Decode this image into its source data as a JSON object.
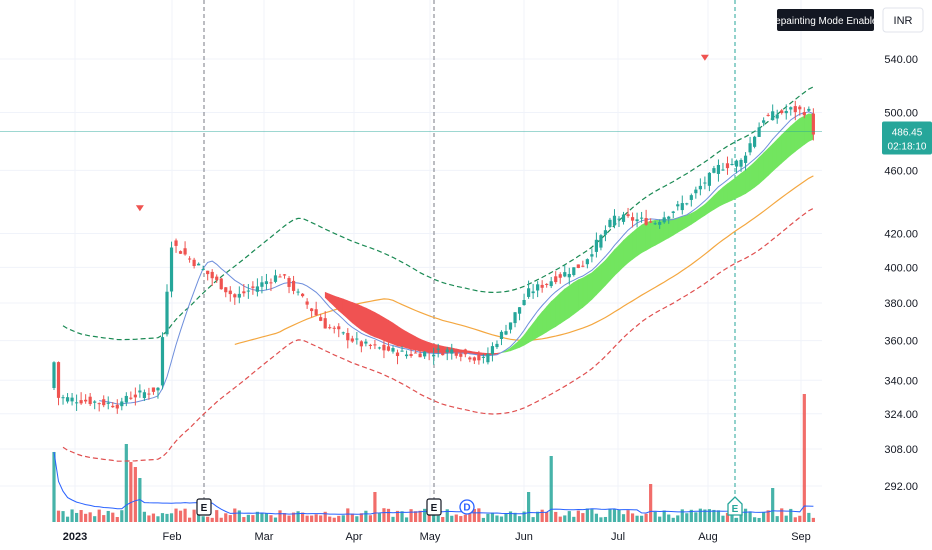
{
  "toolbar": {
    "mode_label": "Repainting Mode Enabled",
    "currency_label": "INR"
  },
  "last_price": {
    "value": "486.45",
    "countdown": "02:18:10"
  },
  "colors": {
    "up": "#26a69a",
    "down": "#ef5350",
    "ribbon_bull": "#72e55f",
    "ribbon_bear": "#f05252",
    "envelope_upper": "#1b8a54",
    "envelope_lower": "#e05050",
    "ma_fast": "#6f8fdc",
    "ma_slow": "#f4a740",
    "price_line": "#26a69a",
    "event_circle": "#2962ff",
    "event_box": "#131722"
  },
  "chart_data": {
    "type": "candlestick",
    "y_axis": {
      "ticks": [
        540,
        500,
        460,
        420,
        400,
        380,
        360,
        340,
        324,
        308,
        292
      ],
      "tick_labels": [
        "540.00",
        "500.00",
        "460.00",
        "420.00",
        "400.00",
        "380.00",
        "360.00",
        "340.00",
        "324.00",
        "308.00",
        "292.00"
      ],
      "scale": "log"
    },
    "x_axis": {
      "labels": [
        "2023",
        "Feb",
        "Mar",
        "Apr",
        "May",
        "Jun",
        "Jul",
        "Aug",
        "Sep"
      ],
      "bold_first": true
    },
    "events": [
      {
        "type": "earnings",
        "label": "E",
        "month": "Feb"
      },
      {
        "type": "earnings",
        "label": "E",
        "month": "May"
      },
      {
        "type": "dividend",
        "label": "D",
        "month": "May"
      },
      {
        "type": "earnings",
        "label": "E",
        "month": "Aug",
        "style": "green"
      }
    ],
    "signals": [
      {
        "type": "sell-arrow",
        "month": "Jan"
      },
      {
        "type": "sell-arrow",
        "month": "Aug"
      }
    ],
    "last_close": 486.45
  }
}
